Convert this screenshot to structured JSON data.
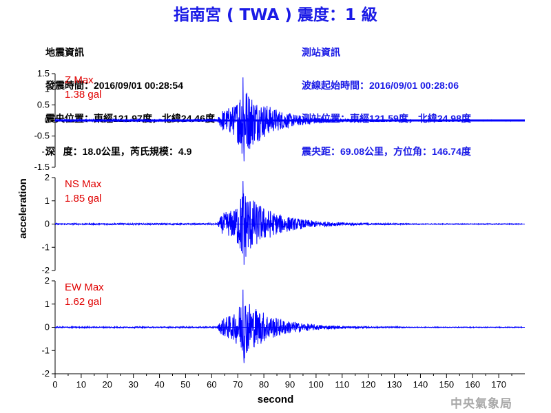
{
  "title": "指南宮 ( TWA ) 震度：1 級",
  "info_left": [
    "地震資訊",
    "發震時間：2016/09/01 00:28:54",
    "震央位置：東經121.97度，北緯24.46度",
    "深   度：18.0公里，芮氏規模：4.9"
  ],
  "info_right": [
    "測站資訊",
    "波線起始時間：2016/09/01 00:28:06",
    "測站位置：東經121.59度，北緯24.98度",
    "震央距：69.08公里，方位角：146.74度"
  ],
  "watermark": "中央氣象局",
  "colors": {
    "trace": "#0000ff",
    "peak_label": "#e00000",
    "title": "#1a1ae6"
  },
  "chart_data": {
    "type": "line",
    "xlabel": "second",
    "ylabel": "acceleration",
    "xlim": [
      0,
      180
    ],
    "x_ticks": [
      0,
      10,
      20,
      30,
      40,
      50,
      60,
      70,
      80,
      90,
      100,
      110,
      120,
      130,
      140,
      150,
      160,
      170
    ],
    "panels": [
      {
        "component": "Z",
        "peak_label": "Z Max",
        "peak_value": "1.38 gal",
        "peak": 1.38,
        "ylim": [
          -1.5,
          1.5
        ],
        "y_ticks": [
          1.5,
          1,
          0.5,
          0,
          -0.5,
          -1,
          -1.5
        ],
        "y_tick_labels": [
          "1.5",
          "1",
          "0.5",
          "0",
          "-0.5",
          "-1",
          "-1.5"
        ]
      },
      {
        "component": "NS",
        "peak_label": "NS Max",
        "peak_value": "1.85 gal",
        "peak": 1.85,
        "ylim": [
          -2,
          2
        ],
        "y_ticks": [
          2,
          1,
          0,
          -1,
          -2
        ],
        "y_tick_labels": [
          "2",
          "1",
          "0",
          "-1",
          "-2"
        ]
      },
      {
        "component": "EW",
        "peak_label": "EW Max",
        "peak_value": "1.62 gal",
        "peak": 1.62,
        "ylim": [
          -2,
          2
        ],
        "y_ticks": [
          2,
          1,
          0,
          -1,
          -2
        ],
        "y_tick_labels": [
          "2",
          "1",
          "0",
          "-1",
          "-2"
        ]
      }
    ]
  }
}
